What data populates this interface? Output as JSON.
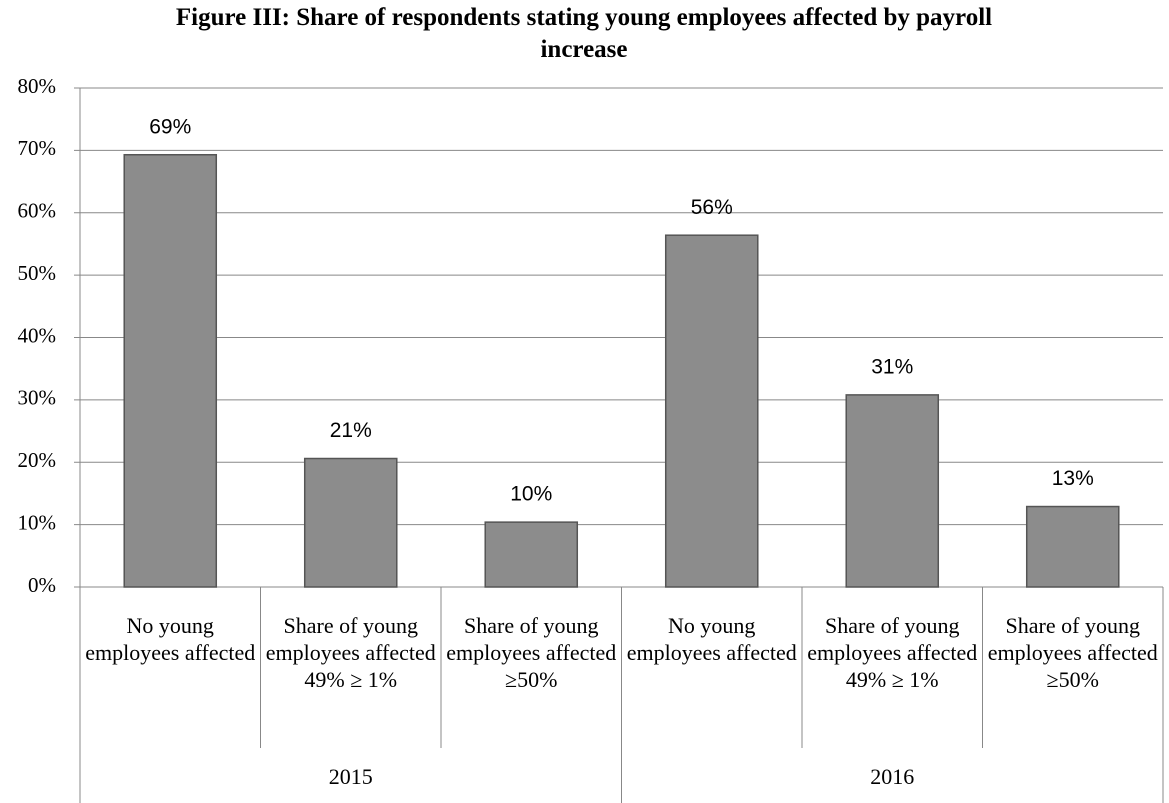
{
  "chart_data": {
    "type": "bar",
    "title": "Figure III: Share of respondents stating young employees affected by payroll increase",
    "categories": [
      "No young employees affected",
      "Share of young employees affected 49% ≥ 1%",
      "Share of young employees affected ≥50%",
      "No young employees affected",
      "Share of young employees affected 49% ≥ 1%",
      "Share of young employees affected ≥50%"
    ],
    "groups": [
      "2015",
      "2016"
    ],
    "values": [
      69.3,
      20.6,
      10.4,
      56.4,
      30.8,
      12.9
    ],
    "value_labels": [
      "69%",
      "21%",
      "10%",
      "56%",
      "31%",
      "13%"
    ],
    "color": "#8c8c8c",
    "ylim": [
      0,
      80
    ],
    "yticks": [
      {
        "value": 0,
        "label": "0%"
      },
      {
        "value": 10,
        "label": "10%"
      },
      {
        "value": 20,
        "label": "20%"
      },
      {
        "value": 30,
        "label": "30%"
      },
      {
        "value": 40,
        "label": "40%"
      },
      {
        "value": 50,
        "label": "50%"
      },
      {
        "value": 60,
        "label": "60%"
      },
      {
        "value": 70,
        "label": "70%"
      },
      {
        "value": 80,
        "label": "80%"
      }
    ],
    "grid": true
  }
}
